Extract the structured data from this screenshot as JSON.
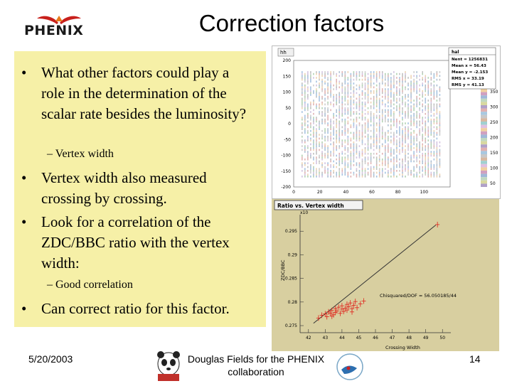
{
  "slide": {
    "logo_text": "PHENIX",
    "title": "Correction factors",
    "bullets": [
      "What other factors could play a role in the determination of the scalar rate besides the luminosity?",
      "Vertex width also measured crossing by crossing.",
      "Look for a correlation of the ZDC/BBC ratio with the vertex width:",
      "Can correct ratio for this factor."
    ],
    "bullet_symbol": "•",
    "subpoints": [
      "– Vertex width",
      "– Good correlation"
    ],
    "footer": {
      "date": "5/20/2003",
      "author": "Douglas Fields for the PHENIX collaboration",
      "page": "14"
    }
  },
  "colors": {
    "panel_bg": "#f6f0a7",
    "scatter_bg": "#d8cfa0",
    "scatter_points": "#e0201a",
    "fit_line": "#333333"
  },
  "chart_data": [
    {
      "type": "heatmap",
      "title": "hh",
      "stats": {
        "header": "hal",
        "lines": [
          "Nent = 1256831",
          "Mean x = 56.43",
          "Mean y = -2.153",
          "RMS x = 33.19",
          "RMS y = 41.13"
        ]
      },
      "x_ticks": [
        0,
        20,
        40,
        60,
        80,
        100
      ],
      "y_ticks": [
        200,
        150,
        100,
        50,
        0,
        -50,
        -100,
        -150,
        -200
      ],
      "xlim": [
        0,
        120
      ],
      "ylim": [
        -200,
        200
      ],
      "color_scale_ticks": [
        350,
        300,
        250,
        200,
        150,
        100,
        50
      ],
      "color_scale_partial_top": "o"
    },
    {
      "type": "scatter",
      "title": "Ratio vs. Vertex width",
      "y_multiplier": "x10",
      "xlabel": "Crossing Width",
      "ylabel": "ZDC/BBC",
      "x_ticks": [
        42,
        43,
        44,
        45,
        46,
        47,
        48,
        49,
        50
      ],
      "y_ticks": [
        0.295,
        0.29,
        0.285,
        0.28,
        0.275
      ],
      "xlim": [
        41.5,
        50.5
      ],
      "ylim": [
        0.2735,
        0.2985
      ],
      "fit_label": "Chisquared/DOF = 56.050185/44",
      "fit_line": {
        "x": [
          42.3,
          49.6
        ],
        "y": [
          0.2755,
          0.2963
        ]
      },
      "points": [
        [
          42.6,
          0.2766
        ],
        [
          42.8,
          0.2772
        ],
        [
          43.0,
          0.2775
        ],
        [
          43.1,
          0.2769
        ],
        [
          43.2,
          0.2779
        ],
        [
          43.3,
          0.2776
        ],
        [
          43.4,
          0.2782
        ],
        [
          43.5,
          0.2773
        ],
        [
          43.6,
          0.2786
        ],
        [
          43.6,
          0.2778
        ],
        [
          43.7,
          0.2781
        ],
        [
          43.8,
          0.2789
        ],
        [
          43.9,
          0.2776
        ],
        [
          44.0,
          0.2785
        ],
        [
          44.0,
          0.2792
        ],
        [
          44.1,
          0.278
        ],
        [
          44.2,
          0.2787
        ],
        [
          44.3,
          0.2795
        ],
        [
          44.3,
          0.2783
        ],
        [
          44.4,
          0.279
        ],
        [
          44.5,
          0.2798
        ],
        [
          44.6,
          0.2786
        ],
        [
          44.7,
          0.2793
        ],
        [
          44.8,
          0.2801
        ],
        [
          44.9,
          0.2788
        ],
        [
          45.1,
          0.2796
        ],
        [
          45.3,
          0.2802
        ],
        [
          43.4,
          0.277
        ],
        [
          44.6,
          0.2779
        ],
        [
          49.7,
          0.2964
        ]
      ]
    }
  ]
}
